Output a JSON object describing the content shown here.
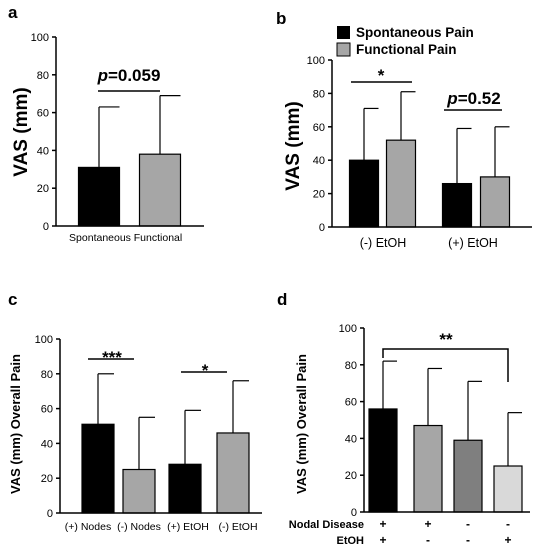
{
  "chart_data": [
    {
      "panel": "a",
      "type": "bar",
      "categories": [
        "Spontaneous",
        "Functional"
      ],
      "values": [
        31,
        38
      ],
      "errors": [
        32,
        31
      ],
      "colors": [
        "#000000",
        "#a6a6a6"
      ],
      "ylabel": "VAS (mm)",
      "ylim": [
        0,
        100
      ],
      "yticks": [
        "0",
        "20",
        "40",
        "60",
        "80",
        "100"
      ],
      "annotation": {
        "p_letter": "p",
        "p_value": "=0.059"
      }
    },
    {
      "panel": "b",
      "type": "bar",
      "categories": [
        "(-) EtOH",
        "(+) EtOH"
      ],
      "series": [
        {
          "name": "Spontaneous Pain",
          "color": "#000000",
          "values": [
            40,
            26
          ],
          "errors": [
            31,
            33
          ]
        },
        {
          "name": "Functional Pain",
          "color": "#a6a6a6",
          "values": [
            52,
            30
          ],
          "errors": [
            29,
            30
          ]
        }
      ],
      "ylabel": "VAS (mm)",
      "ylim": [
        0,
        100
      ],
      "yticks": [
        "0",
        "20",
        "40",
        "60",
        "80",
        "100"
      ],
      "legend": "top-right",
      "annotations": [
        {
          "text": "*",
          "group": 0
        },
        {
          "p_letter": "p",
          "p_value": "=0.52",
          "group": 1
        }
      ]
    },
    {
      "panel": "c",
      "type": "bar",
      "categories": [
        "(+) Nodes",
        "(-) Nodes",
        "(+) EtOH",
        "(-) EtOH"
      ],
      "values": [
        51,
        25,
        28,
        46
      ],
      "errors": [
        29,
        30,
        31,
        30
      ],
      "colors": [
        "#000000",
        "#a6a6a6",
        "#000000",
        "#a6a6a6"
      ],
      "ylabel": "VAS (mm) Overall Pain",
      "ylim": [
        0,
        100
      ],
      "yticks": [
        "0",
        "20",
        "40",
        "60",
        "80",
        "100"
      ],
      "annotations": [
        {
          "text": "***",
          "bars": [
            0,
            1
          ]
        },
        {
          "text": "*",
          "bars": [
            2,
            3
          ]
        }
      ]
    },
    {
      "panel": "d",
      "type": "bar",
      "row_labels": [
        "Nodal Disease",
        "EtOH"
      ],
      "categories": [
        [
          "+",
          "+"
        ],
        [
          "+",
          "-"
        ],
        [
          "-",
          "-"
        ],
        [
          "-",
          "+"
        ]
      ],
      "values": [
        56,
        47,
        39,
        25
      ],
      "errors": [
        26,
        31,
        32,
        29
      ],
      "colors": [
        "#000000",
        "#a6a6a6",
        "#7f7f7f",
        "#d9d9d9"
      ],
      "ylabel": "VAS (mm) Overall Pain",
      "ylim": [
        0,
        100
      ],
      "yticks": [
        "0",
        "20",
        "40",
        "60",
        "80",
        "100"
      ],
      "annotations": [
        {
          "text": "**",
          "bars": [
            0,
            3
          ]
        }
      ]
    }
  ]
}
